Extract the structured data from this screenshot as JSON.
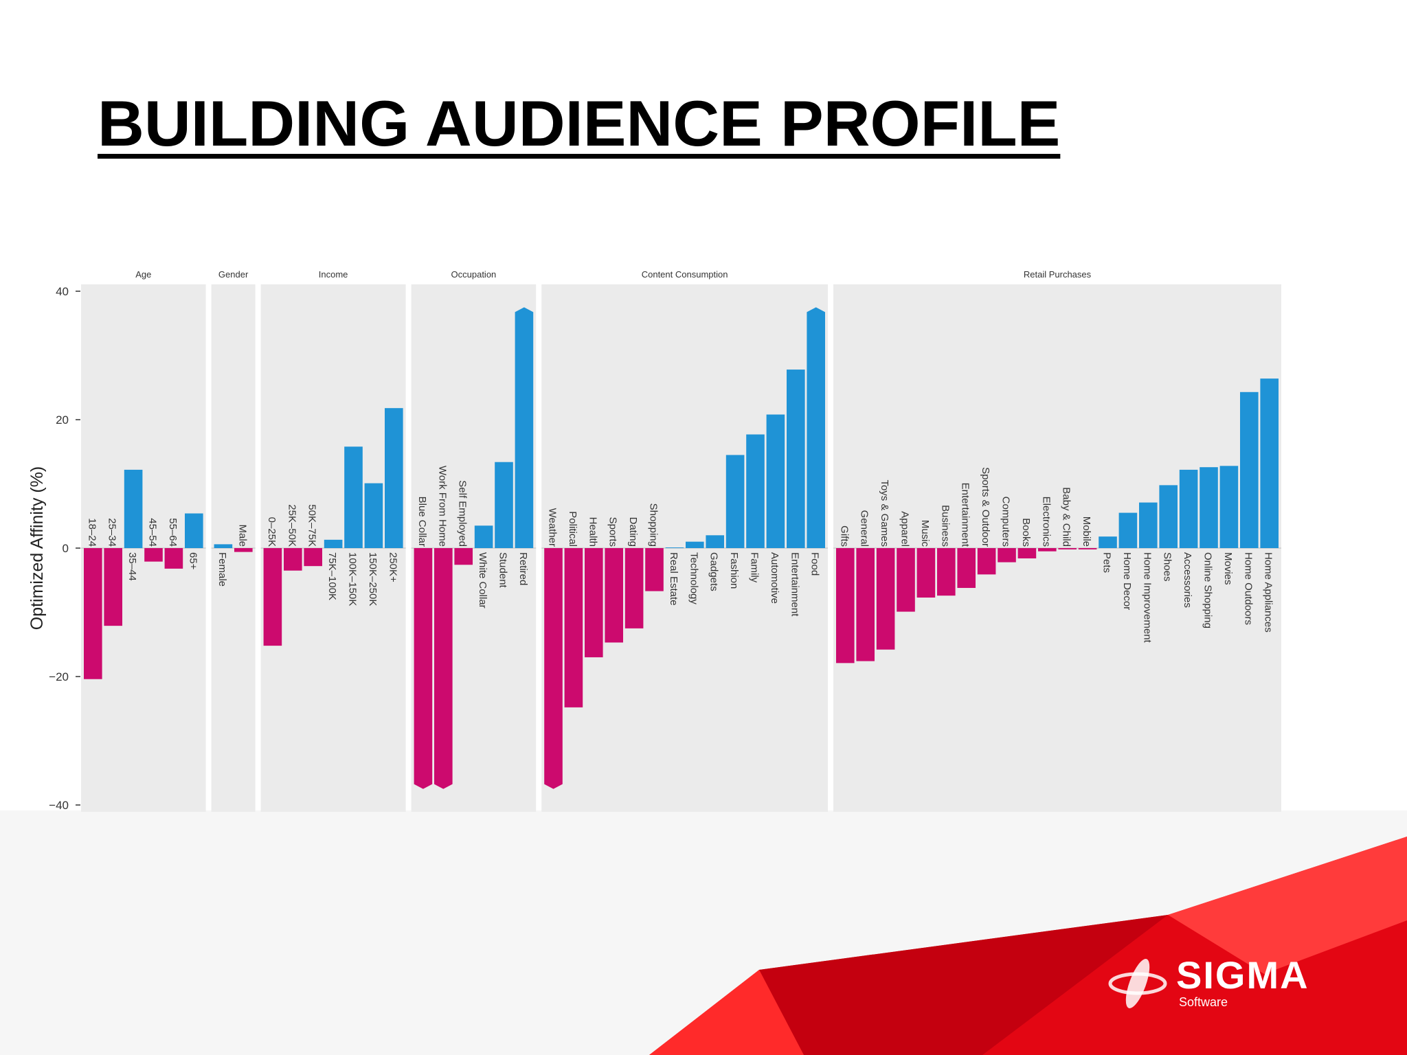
{
  "slide": {
    "title": "BUILDING AUDIENCE PROFILE"
  },
  "logo": {
    "word": "SIGMA",
    "sub": "Software"
  },
  "colors": {
    "positive": "#1f93d6",
    "negative": "#cc0a6e",
    "panel": "#ebebeb",
    "brand_red": "#e30613"
  },
  "chart_data": {
    "type": "bar",
    "title": "",
    "xlabel": "",
    "ylabel": "Optimized Affinity (%)",
    "ylim": [
      -40,
      40
    ],
    "yticks": [
      -40,
      -20,
      0,
      20,
      40
    ],
    "grid": false,
    "legend": "none",
    "note": "bars exceeding ±37 are truncated at the axis limit",
    "facets": [
      {
        "name": "Age",
        "categories": [
          "18–24",
          "25–34",
          "35–44",
          "45–54",
          "55–64",
          "65+"
        ],
        "values": [
          -20.4,
          -12.1,
          12.2,
          -2.1,
          -3.2,
          5.4
        ]
      },
      {
        "name": "Gender",
        "categories": [
          "Female",
          "Male"
        ],
        "values": [
          0.6,
          -0.6
        ]
      },
      {
        "name": "Income",
        "categories": [
          "0–25K",
          "25K–50K",
          "50K–75K",
          "75K–100K",
          "100K–150K",
          "150K–250K",
          "250K+"
        ],
        "values": [
          -15.2,
          -3.5,
          -2.8,
          1.3,
          15.8,
          10.1,
          21.8
        ]
      },
      {
        "name": "Occupation",
        "categories": [
          "Blue Collar",
          "Work From Home",
          "Self Employed",
          "White Collar",
          "Student",
          "Retired"
        ],
        "values": [
          -37.5,
          -37.5,
          -2.6,
          3.5,
          13.4,
          37.5
        ]
      },
      {
        "name": "Content Consumption",
        "categories": [
          "Weather",
          "Political",
          "Health",
          "Sports",
          "Dating",
          "Shopping",
          "Real Estate",
          "Technology",
          "Gadgets",
          "Fashion",
          "Family",
          "Automotive",
          "Entertainment",
          "Food"
        ],
        "values": [
          -37.5,
          -24.8,
          -17.0,
          -14.7,
          -12.5,
          -6.7,
          0.1,
          1.0,
          2.0,
          14.5,
          17.7,
          20.8,
          27.8,
          37.5
        ]
      },
      {
        "name": "Retail Purchases",
        "categories": [
          "Gifts",
          "General",
          "Toys & Games",
          "Apparel",
          "Music",
          "Business",
          "Entertainment",
          "Sports & Outdoor",
          "Computers",
          "Books",
          "Electronics",
          "Baby & Child",
          "Mobile",
          "Pets",
          "Home Decor",
          "Home Improvement",
          "Shoes",
          "Accessories",
          "Online Shopping",
          "Movies",
          "Home Outdoors",
          "Home Appliances"
        ],
        "values": [
          -17.9,
          -17.6,
          -15.8,
          -9.9,
          -7.7,
          -7.4,
          -6.2,
          -4.1,
          -2.2,
          -1.6,
          -0.5,
          -0.2,
          -0.2,
          1.8,
          5.5,
          7.1,
          9.8,
          12.2,
          12.6,
          12.8,
          24.3,
          26.4
        ]
      }
    ]
  }
}
